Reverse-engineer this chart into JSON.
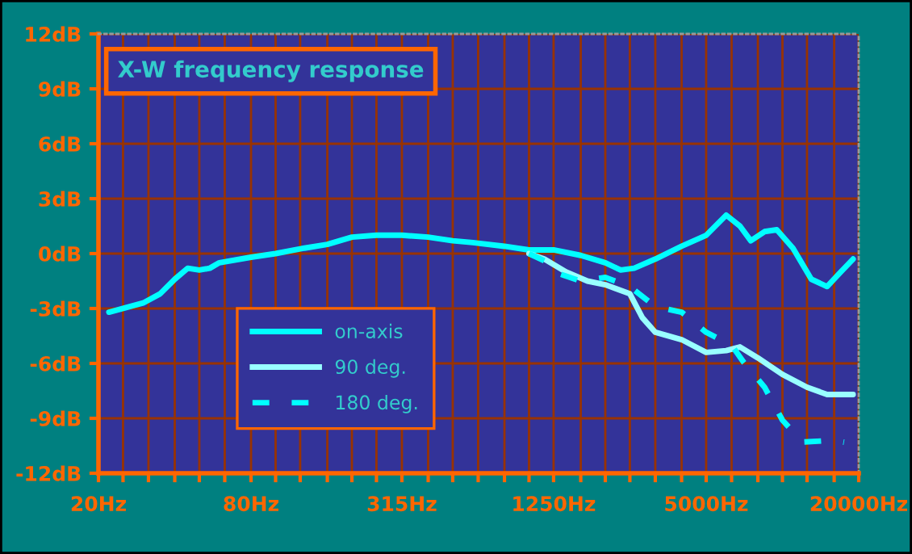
{
  "chart_data": {
    "type": "line",
    "title": "X-W frequency response",
    "xlim": [
      20,
      20000
    ],
    "ylim": [
      -12,
      12
    ],
    "log": "x",
    "grid": true,
    "legend": "bottom left",
    "marker": "none",
    "xticks": [
      {
        "value": 20,
        "label": "20Hz"
      },
      {
        "value": 25,
        "label": null
      },
      {
        "value": 31.5,
        "label": null
      },
      {
        "value": 40,
        "label": null
      },
      {
        "value": 50,
        "label": null
      },
      {
        "value": 63,
        "label": null
      },
      {
        "value": 80,
        "label": "80Hz"
      },
      {
        "value": 100,
        "label": null
      },
      {
        "value": 125,
        "label": null
      },
      {
        "value": 160,
        "label": null
      },
      {
        "value": 200,
        "label": null
      },
      {
        "value": 250,
        "label": null
      },
      {
        "value": 315,
        "label": "315Hz"
      },
      {
        "value": 400,
        "label": null
      },
      {
        "value": 500,
        "label": null
      },
      {
        "value": 630,
        "label": null
      },
      {
        "value": 800,
        "label": null
      },
      {
        "value": 1000,
        "label": null
      },
      {
        "value": 1250,
        "label": "1250Hz"
      },
      {
        "value": 1600,
        "label": null
      },
      {
        "value": 2000,
        "label": null
      },
      {
        "value": 2500,
        "label": null
      },
      {
        "value": 3150,
        "label": null
      },
      {
        "value": 4000,
        "label": null
      },
      {
        "value": 5000,
        "label": "5000Hz"
      },
      {
        "value": 6300,
        "label": null
      },
      {
        "value": 8000,
        "label": null
      },
      {
        "value": 10000,
        "label": null
      },
      {
        "value": 12500,
        "label": null
      },
      {
        "value": 16000,
        "label": null
      },
      {
        "value": 20000,
        "label": "20000Hz"
      }
    ],
    "yticks": [
      {
        "value": -12,
        "label": "-12dB"
      },
      {
        "value": -9,
        "label": "-9dB"
      },
      {
        "value": -6,
        "label": "-6dB"
      },
      {
        "value": -3,
        "label": "-3dB"
      },
      {
        "value": 0,
        "label": "0dB"
      },
      {
        "value": 3,
        "label": "3dB"
      },
      {
        "value": 6,
        "label": "6dB"
      },
      {
        "value": 9,
        "label": "9dB"
      },
      {
        "value": 12,
        "label": "12dB"
      }
    ],
    "series": [
      {
        "name": "on-axis",
        "color": "#00ffff",
        "line_style": "solid",
        "x": [
          22,
          30,
          35,
          40,
          45,
          50,
          55,
          60,
          80,
          100,
          130,
          160,
          200,
          250,
          315,
          400,
          500,
          600,
          800,
          1000,
          1250,
          1600,
          2000,
          2300,
          2600,
          3150,
          4000,
          5000,
          6000,
          6800,
          7500,
          8500,
          9500,
          11000,
          13000,
          15000,
          17000,
          19000
        ],
        "values": [
          -3.2,
          -2.7,
          -2.2,
          -1.4,
          -0.8,
          -0.9,
          -0.8,
          -0.5,
          -0.2,
          0,
          0.3,
          0.5,
          0.9,
          1.0,
          1.0,
          0.9,
          0.7,
          0.6,
          0.4,
          0.2,
          0.2,
          -0.1,
          -0.5,
          -0.9,
          -0.8,
          -0.3,
          0.4,
          1.0,
          2.1,
          1.5,
          0.7,
          1.2,
          1.3,
          0.3,
          -1.4,
          -1.8,
          -1.0,
          -0.3
        ]
      },
      {
        "name": "90 deg.",
        "color": "#99ffff",
        "line_style": "solid",
        "x": [
          1000,
          1150,
          1400,
          1700,
          2000,
          2500,
          2800,
          3150,
          4000,
          5000,
          6000,
          6800,
          8000,
          10000,
          12500,
          15000,
          19000
        ],
        "values": [
          0,
          -0.3,
          -1.0,
          -1.5,
          -1.7,
          -2.2,
          -3.5,
          -4.3,
          -4.7,
          -5.4,
          -5.3,
          -5.1,
          -5.7,
          -6.6,
          -7.3,
          -7.7,
          -7.7
        ]
      },
      {
        "name": "180 deg.",
        "color": "#00ffff",
        "line_style": "dashed",
        "x": [
          1000,
          1150,
          1250,
          1600,
          2000,
          2500,
          3150,
          4000,
          5000,
          6300,
          7000,
          8500,
          10000,
          12000,
          16000,
          17500
        ],
        "values": [
          0,
          -0.4,
          -1.0,
          -1.5,
          -1.3,
          -1.8,
          -2.9,
          -3.2,
          -4.3,
          -5.0,
          -5.9,
          -7.3,
          -9.1,
          -10.3,
          -10.2,
          -10.3
        ]
      }
    ]
  }
}
